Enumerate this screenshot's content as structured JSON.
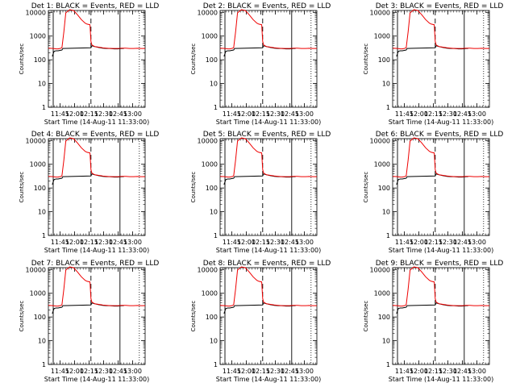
{
  "chart_data": [
    {
      "type": "line",
      "title": "Det 1: BLACK = Events, RED = LLD"
    },
    {
      "type": "line",
      "title": "Det 2: BLACK = Events, RED = LLD"
    },
    {
      "type": "line",
      "title": "Det 3: BLACK = Events, RED = LLD"
    },
    {
      "type": "line",
      "title": "Det 4: BLACK = Events, RED = LLD"
    },
    {
      "type": "line",
      "title": "Det 5: BLACK = Events, RED = LLD"
    },
    {
      "type": "line",
      "title": "Det 6: BLACK = Events, RED = LLD"
    },
    {
      "type": "line",
      "title": "Det 7: BLACK = Events, RED = LLD"
    },
    {
      "type": "line",
      "title": "Det 8: BLACK = Events, RED = LLD"
    },
    {
      "type": "line",
      "title": "Det 9: BLACK = Events, RED = LLD"
    }
  ],
  "shared": {
    "xlabel": "Start Time (14-Aug-11 11:33:00)",
    "ylabel": "Counts/sec",
    "x_ticks": [
      "11:45",
      "12:00",
      "12:15",
      "12:30",
      "12:45",
      "13:00"
    ],
    "x_tick_minutes": [
      12,
      27,
      42,
      57,
      72,
      87
    ],
    "xlim_minutes": [
      0,
      100
    ],
    "y_scale": "log",
    "ylim": [
      1,
      12000
    ],
    "y_ticks": [
      "1",
      "10",
      "100",
      "1000",
      "10000"
    ],
    "y_tick_values": [
      1,
      10,
      100,
      1000,
      10000
    ],
    "solid_markers_minutes": [
      5,
      74
    ],
    "dashed_markers_minutes": [
      44
    ],
    "dotted_markers_minutes": [
      94
    ],
    "lld_series": {
      "name": "LLD",
      "color": "#ee0000",
      "x": [
        0,
        5,
        8,
        10,
        12,
        14,
        16,
        18,
        22,
        26,
        30,
        34,
        38,
        40,
        43,
        44,
        45,
        46,
        48,
        52,
        56,
        60,
        64,
        68,
        72,
        76,
        80,
        84,
        88,
        92,
        96,
        100
      ],
      "y": [
        310,
        300,
        290,
        290,
        300,
        320,
        1500,
        9500,
        13000,
        12000,
        8000,
        5000,
        3500,
        3200,
        3000,
        600,
        420,
        400,
        360,
        340,
        320,
        310,
        300,
        300,
        300,
        310,
        310,
        300,
        300,
        305,
        300,
        300
      ]
    },
    "events_series": {
      "name": "Events",
      "color": "#000000",
      "x": [
        4,
        6,
        8,
        10,
        12,
        14,
        15,
        44,
        45,
        48,
        52,
        56,
        60,
        64,
        68,
        72,
        76,
        78
      ],
      "y": [
        140,
        230,
        240,
        240,
        250,
        260,
        300,
        320,
        390,
        360,
        330,
        310,
        300,
        300,
        290,
        290,
        300,
        300
      ]
    }
  }
}
